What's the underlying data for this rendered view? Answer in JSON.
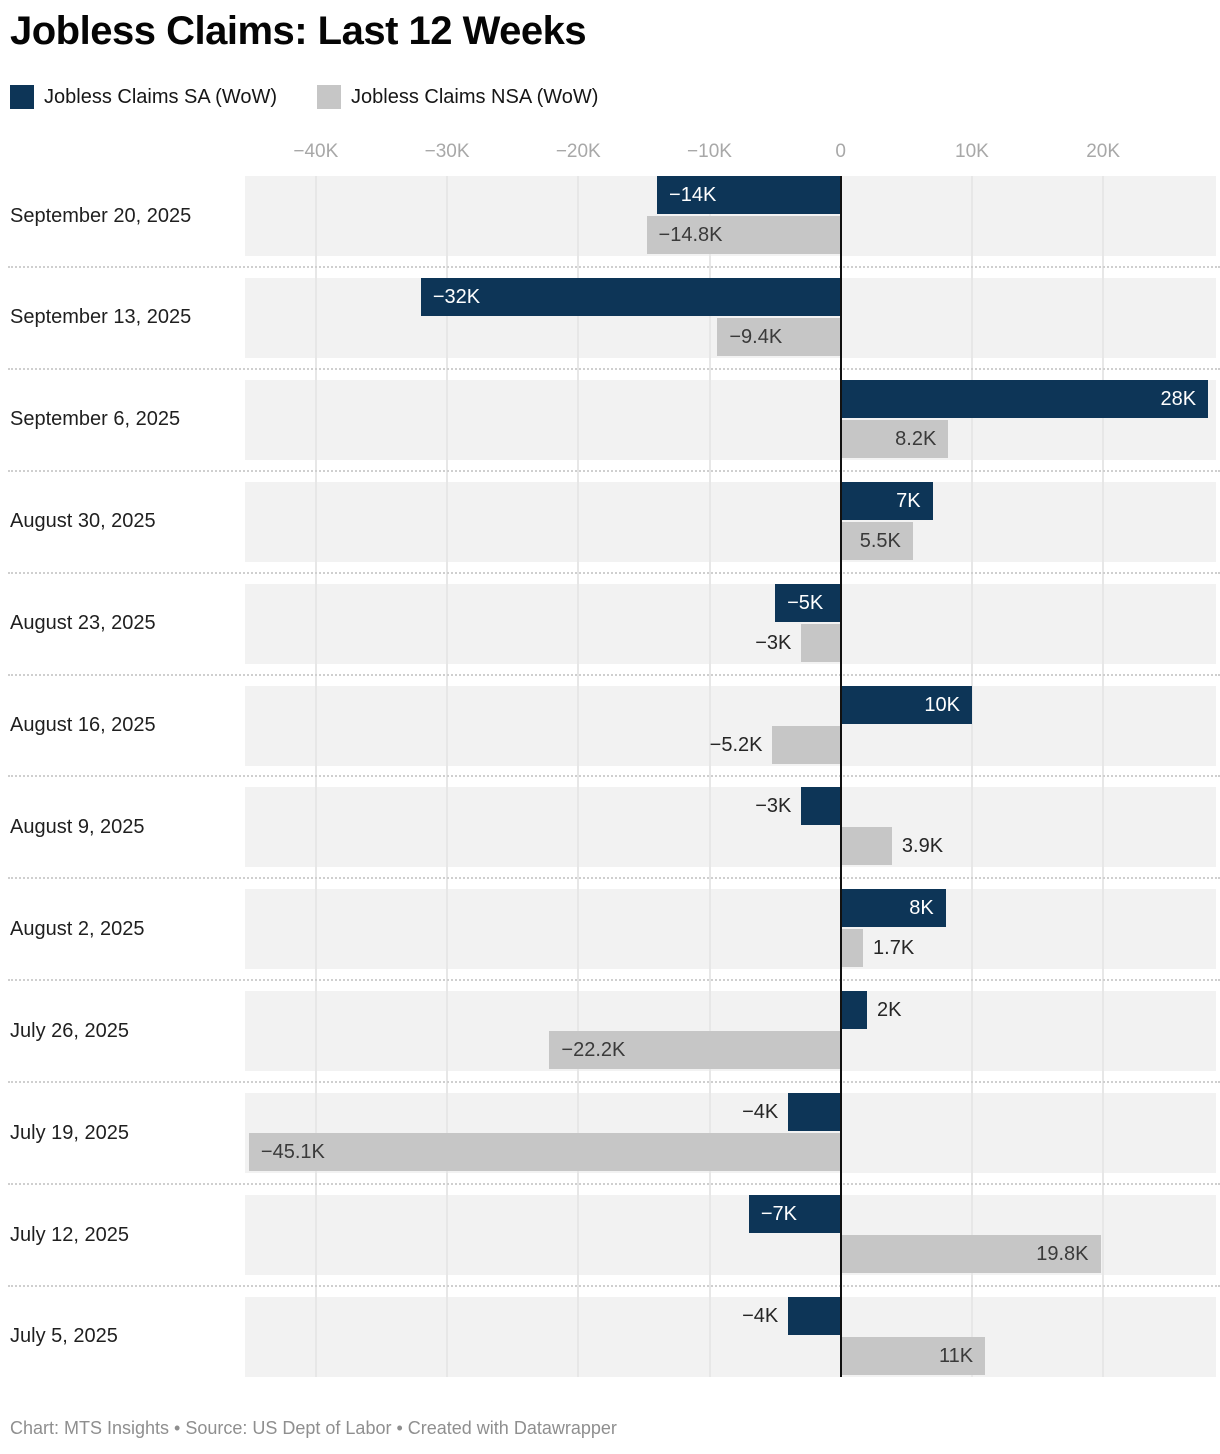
{
  "title": "Jobless Claims: Last 12 Weeks",
  "footer": "Chart: MTS Insights • Source: US Dept of Labor • Created with Datawrapper",
  "legend": [
    {
      "label": "Jobless Claims SA (WoW)",
      "color": "#0d3557"
    },
    {
      "label": "Jobless Claims NSA (WoW)",
      "color": "#c6c6c6"
    }
  ],
  "colors": {
    "series_sa": "#0d3557",
    "series_nsa": "#c6c6c6",
    "row_band": "#f2f2f2",
    "gridline": "#e7e7e7",
    "zero_line": "#111111",
    "label_on_sa": "#ffffff",
    "label_on_nsa": "#3a3a3a",
    "label_outside": "#262626"
  },
  "chart_data": {
    "type": "bar",
    "orientation": "horizontal",
    "diverging": true,
    "unit": "thousands (K)",
    "grid": true,
    "legend_position": "top",
    "categories": [
      "September 20, 2025",
      "September 13, 2025",
      "September 6, 2025",
      "August 30, 2025",
      "August 23, 2025",
      "August 16, 2025",
      "August 9, 2025",
      "August 2, 2025",
      "July 26, 2025",
      "July 19, 2025",
      "July 12, 2025",
      "July 5, 2025"
    ],
    "series": [
      {
        "name": "Jobless Claims SA (WoW)",
        "color": "#0d3557",
        "values": [
          -14,
          -32,
          28,
          7,
          -5,
          10,
          -3,
          8,
          2,
          -4,
          -7,
          -4
        ],
        "labels": [
          "−14K",
          "−32K",
          "28K",
          "7K",
          "−5K",
          "10K",
          "−3K",
          "8K",
          "2K",
          "−4K",
          "−7K",
          "−4K"
        ]
      },
      {
        "name": "Jobless Claims NSA (WoW)",
        "color": "#c6c6c6",
        "values": [
          -14.8,
          -9.4,
          8.2,
          5.5,
          -3,
          -5.2,
          3.9,
          1.7,
          -22.2,
          -45.1,
          19.8,
          11
        ],
        "labels": [
          "−14.8K",
          "−9.4K",
          "8.2K",
          "5.5K",
          "−3K",
          "−5.2K",
          "3.9K",
          "1.7K",
          "−22.2K",
          "−45.1K",
          "19.8K",
          "11K"
        ]
      }
    ],
    "x_axis": {
      "xmin": -45.4,
      "xmax": 28.6,
      "ticks": [
        -40,
        -30,
        -20,
        -10,
        0,
        10,
        20
      ],
      "tick_labels": [
        "−40K",
        "−30K",
        "−20K",
        "−10K",
        "0",
        "10K",
        "20K"
      ]
    }
  }
}
